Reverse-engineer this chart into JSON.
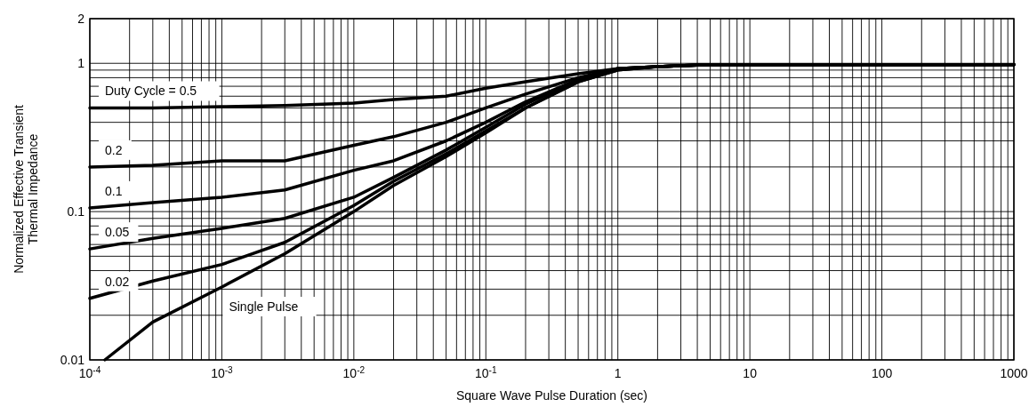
{
  "chart_data": {
    "type": "line",
    "xlabel": "Square Wave Pulse Duration (sec)",
    "ylabel": "Normalized Effective Transient\nThermal Impedance",
    "log": "xy",
    "grid": true,
    "line_style": "solid",
    "marker": "none",
    "xlim": [
      0.0001,
      1000
    ],
    "ylim": [
      0.01,
      2
    ],
    "xticks": [
      {
        "value": 0.0001,
        "label": "10$^{-4}$"
      },
      {
        "value": 0.001,
        "label": "10$^{-3}$"
      },
      {
        "value": 0.01,
        "label": "10$^{-2}$"
      },
      {
        "value": 0.1,
        "label": "10$^{-1}$"
      },
      1,
      10,
      100,
      1000
    ],
    "yticks": [
      0.01,
      0.1,
      1,
      2
    ],
    "series": [
      {
        "name": "Duty Cycle = 0.5",
        "color": "#000000",
        "x": [
          0.0001,
          0.0003,
          0.001,
          0.003,
          0.01,
          0.02,
          0.05,
          0.1,
          0.2,
          0.5,
          1,
          2,
          5,
          1000
        ],
        "values": [
          0.5,
          0.5,
          0.51,
          0.52,
          0.54,
          0.57,
          0.6,
          0.68,
          0.75,
          0.85,
          0.92,
          0.95,
          0.98,
          0.98
        ]
      },
      {
        "name": "0.2",
        "color": "#000000",
        "x": [
          0.0001,
          0.0003,
          0.001,
          0.003,
          0.01,
          0.02,
          0.05,
          0.1,
          0.2,
          0.5,
          1,
          2,
          5,
          1000
        ],
        "values": [
          0.2,
          0.205,
          0.22,
          0.22,
          0.28,
          0.32,
          0.4,
          0.5,
          0.62,
          0.8,
          0.92,
          0.95,
          0.98,
          0.98
        ]
      },
      {
        "name": "0.1",
        "color": "#000000",
        "x": [
          0.0001,
          0.0003,
          0.001,
          0.003,
          0.01,
          0.02,
          0.05,
          0.1,
          0.2,
          0.5,
          1,
          2,
          5,
          1000
        ],
        "values": [
          0.106,
          0.115,
          0.125,
          0.14,
          0.19,
          0.22,
          0.3,
          0.4,
          0.55,
          0.78,
          0.92,
          0.95,
          0.98,
          0.98
        ]
      },
      {
        "name": "0.05",
        "color": "#000000",
        "x": [
          0.0001,
          0.0003,
          0.001,
          0.003,
          0.01,
          0.02,
          0.05,
          0.1,
          0.2,
          0.5,
          1,
          2,
          5,
          1000
        ],
        "values": [
          0.056,
          0.066,
          0.077,
          0.09,
          0.125,
          0.17,
          0.26,
          0.37,
          0.53,
          0.77,
          0.92,
          0.95,
          0.98,
          0.98
        ]
      },
      {
        "name": "0.02",
        "color": "#000000",
        "x": [
          0.0001,
          0.0003,
          0.001,
          0.003,
          0.01,
          0.02,
          0.05,
          0.1,
          0.2,
          0.5,
          1,
          2,
          5,
          1000
        ],
        "values": [
          0.026,
          0.034,
          0.044,
          0.062,
          0.11,
          0.16,
          0.245,
          0.35,
          0.5,
          0.75,
          0.9,
          0.95,
          0.98,
          0.98
        ]
      },
      {
        "name": "Single Pulse",
        "color": "#000000",
        "x": [
          0.00013,
          0.0003,
          0.001,
          0.003,
          0.01,
          0.02,
          0.05,
          0.1,
          0.2,
          0.5,
          1,
          2,
          5,
          1000
        ],
        "values": [
          0.01,
          0.018,
          0.031,
          0.052,
          0.1,
          0.15,
          0.235,
          0.34,
          0.5,
          0.75,
          0.9,
          0.95,
          0.98,
          0.98
        ]
      }
    ]
  }
}
